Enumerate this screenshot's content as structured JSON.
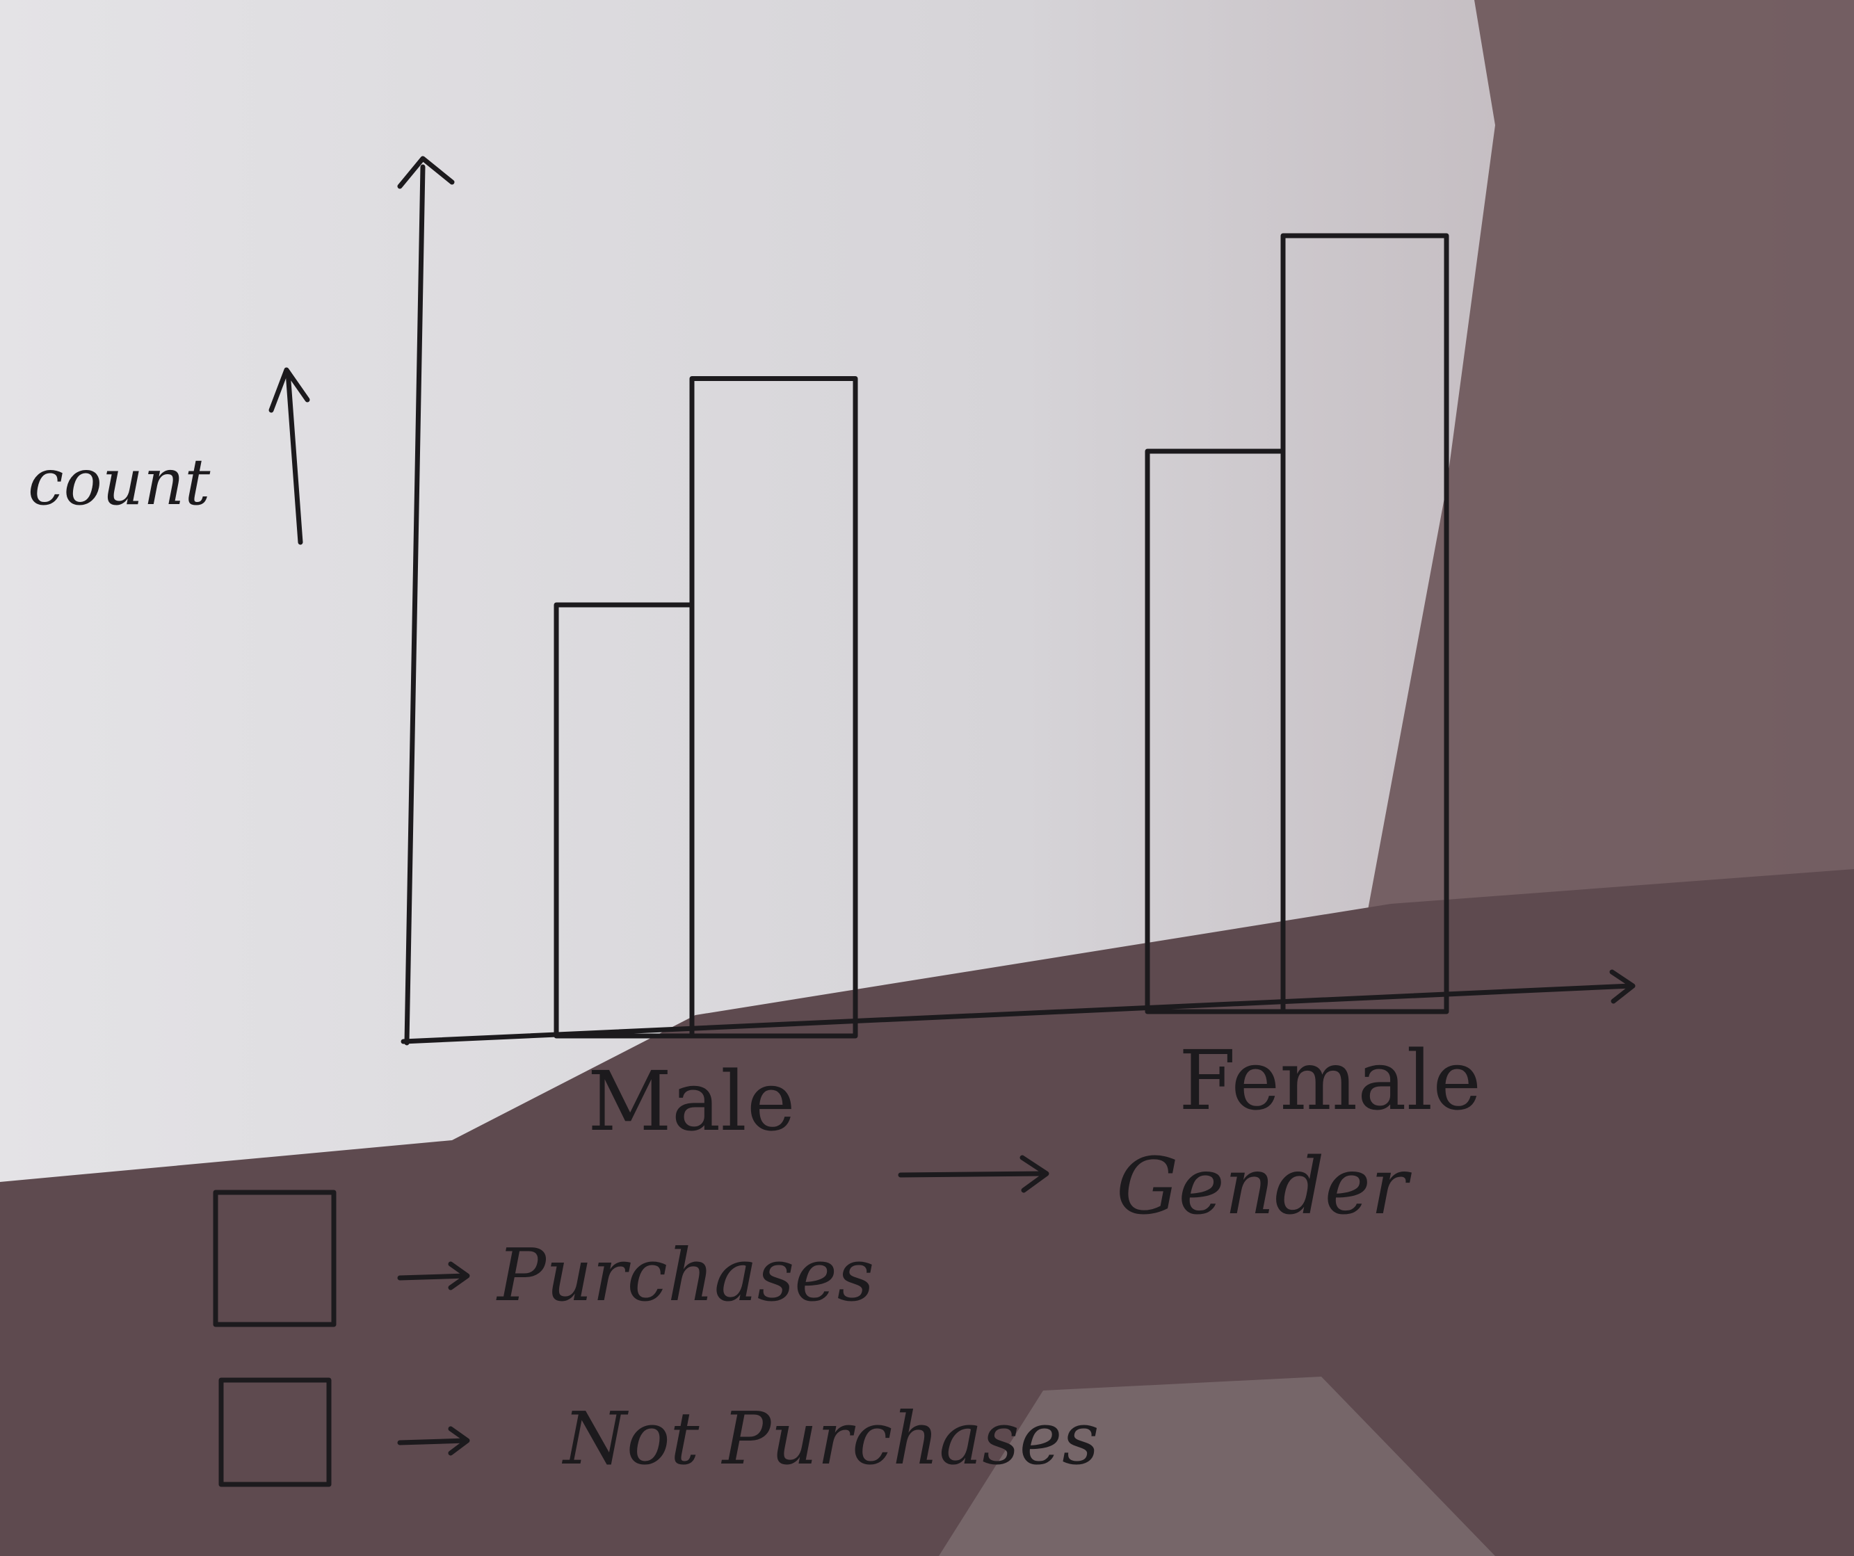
{
  "chart_data": {
    "type": "bar",
    "title": "",
    "xlabel": "Gender",
    "ylabel": "count",
    "categories": [
      "Male",
      "Female"
    ],
    "series": [
      {
        "name": "Purchases",
        "values": [
          4,
          5.2
        ]
      },
      {
        "name": "Not Purchases",
        "values": [
          6.1,
          7.2
        ]
      }
    ],
    "ylim": [
      0,
      8
    ],
    "grid": false,
    "legend": "bottom-left",
    "colors": {
      "ink": "#1c1a1d",
      "paper": "#dcdadc",
      "shadow": "#5e4a4f"
    }
  }
}
